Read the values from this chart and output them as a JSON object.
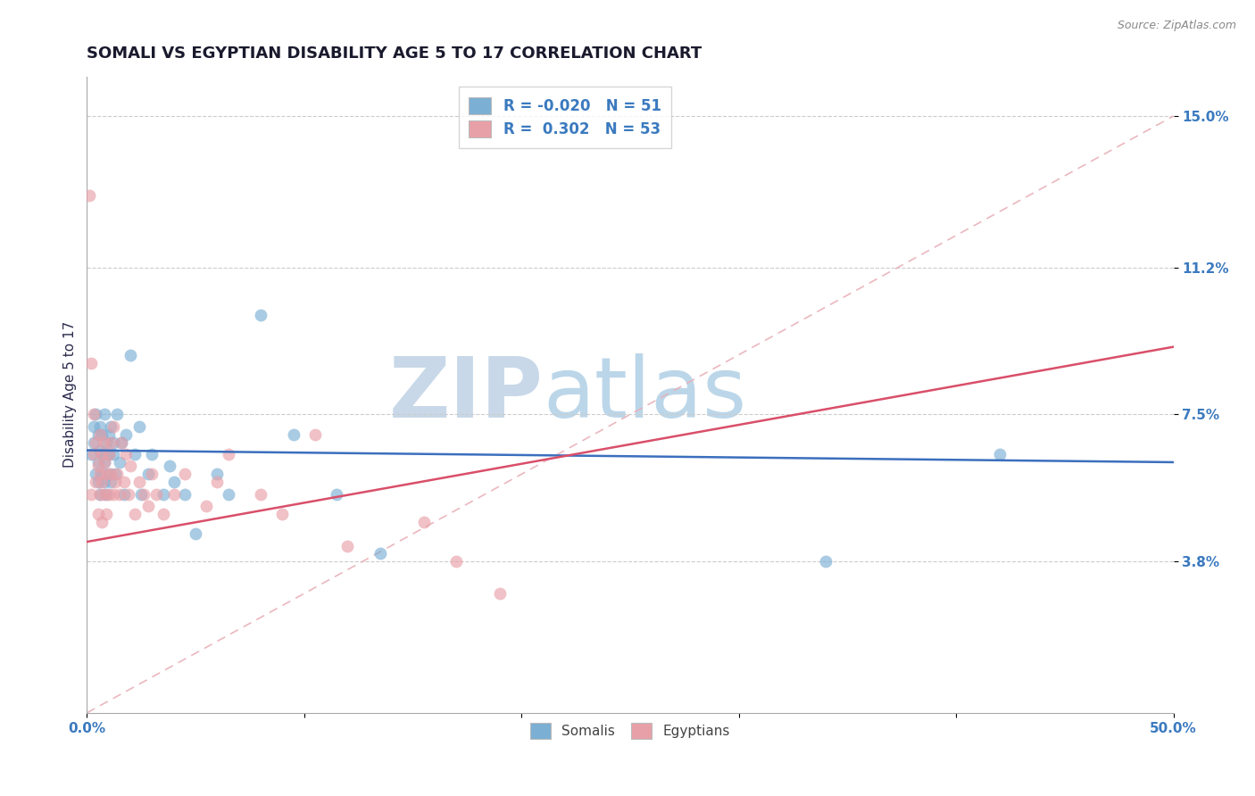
{
  "title": "SOMALI VS EGYPTIAN DISABILITY AGE 5 TO 17 CORRELATION CHART",
  "source": "Source: ZipAtlas.com",
  "ylabel": "Disability Age 5 to 17",
  "xlim": [
    0.0,
    0.5
  ],
  "ylim": [
    0.0,
    0.16
  ],
  "xticks": [
    0.0,
    0.1,
    0.2,
    0.3,
    0.4,
    0.5
  ],
  "xticklabels": [
    "0.0%",
    "",
    "",
    "",
    "",
    "50.0%"
  ],
  "yticks": [
    0.038,
    0.075,
    0.112,
    0.15
  ],
  "yticklabels": [
    "3.8%",
    "7.5%",
    "11.2%",
    "15.0%"
  ],
  "somali_R": -0.02,
  "somali_N": 51,
  "egyptian_R": 0.302,
  "egyptian_N": 53,
  "somali_color": "#7bafd4",
  "egyptian_color": "#e8a0a8",
  "somali_line_color": "#3b6fbe",
  "egyptian_line_color": "#d94f6a",
  "diagonal_color": "#e8b0b8",
  "background_color": "#ffffff",
  "watermark_zip_color": "#c8d8e8",
  "watermark_atlas_color": "#7bafd4",
  "title_color": "#1a1a2e",
  "axis_label_color": "#2c2c4e",
  "tick_label_color": "#3b7abf",
  "legend_r_color": "#3b7abf",
  "grid_color": "#cccccc",
  "somali_x": [
    0.002,
    0.003,
    0.003,
    0.004,
    0.004,
    0.005,
    0.005,
    0.005,
    0.006,
    0.006,
    0.006,
    0.007,
    0.007,
    0.007,
    0.008,
    0.008,
    0.008,
    0.009,
    0.009,
    0.01,
    0.01,
    0.01,
    0.011,
    0.011,
    0.012,
    0.012,
    0.013,
    0.014,
    0.015,
    0.016,
    0.017,
    0.018,
    0.02,
    0.022,
    0.024,
    0.025,
    0.028,
    0.03,
    0.035,
    0.038,
    0.04,
    0.045,
    0.05,
    0.06,
    0.065,
    0.08,
    0.095,
    0.115,
    0.135,
    0.34,
    0.42
  ],
  "somali_y": [
    0.065,
    0.068,
    0.072,
    0.06,
    0.075,
    0.058,
    0.063,
    0.07,
    0.055,
    0.066,
    0.072,
    0.06,
    0.065,
    0.07,
    0.058,
    0.063,
    0.075,
    0.068,
    0.055,
    0.06,
    0.065,
    0.07,
    0.058,
    0.072,
    0.065,
    0.068,
    0.06,
    0.075,
    0.063,
    0.068,
    0.055,
    0.07,
    0.09,
    0.065,
    0.072,
    0.055,
    0.06,
    0.065,
    0.055,
    0.062,
    0.058,
    0.055,
    0.045,
    0.06,
    0.055,
    0.1,
    0.07,
    0.055,
    0.04,
    0.038,
    0.065
  ],
  "egyptian_x": [
    0.001,
    0.002,
    0.002,
    0.003,
    0.003,
    0.004,
    0.004,
    0.005,
    0.005,
    0.006,
    0.006,
    0.006,
    0.007,
    0.007,
    0.007,
    0.008,
    0.008,
    0.008,
    0.009,
    0.009,
    0.01,
    0.01,
    0.011,
    0.011,
    0.012,
    0.012,
    0.013,
    0.014,
    0.015,
    0.016,
    0.017,
    0.018,
    0.019,
    0.02,
    0.022,
    0.024,
    0.026,
    0.028,
    0.03,
    0.032,
    0.035,
    0.04,
    0.045,
    0.055,
    0.06,
    0.065,
    0.08,
    0.09,
    0.105,
    0.12,
    0.155,
    0.17,
    0.19
  ],
  "egyptian_y": [
    0.13,
    0.088,
    0.055,
    0.075,
    0.065,
    0.058,
    0.068,
    0.05,
    0.062,
    0.055,
    0.06,
    0.07,
    0.048,
    0.058,
    0.065,
    0.055,
    0.063,
    0.068,
    0.05,
    0.06,
    0.055,
    0.065,
    0.06,
    0.068,
    0.055,
    0.072,
    0.058,
    0.06,
    0.055,
    0.068,
    0.058,
    0.065,
    0.055,
    0.062,
    0.05,
    0.058,
    0.055,
    0.052,
    0.06,
    0.055,
    0.05,
    0.055,
    0.06,
    0.052,
    0.058,
    0.065,
    0.055,
    0.05,
    0.07,
    0.042,
    0.048,
    0.038,
    0.03
  ]
}
